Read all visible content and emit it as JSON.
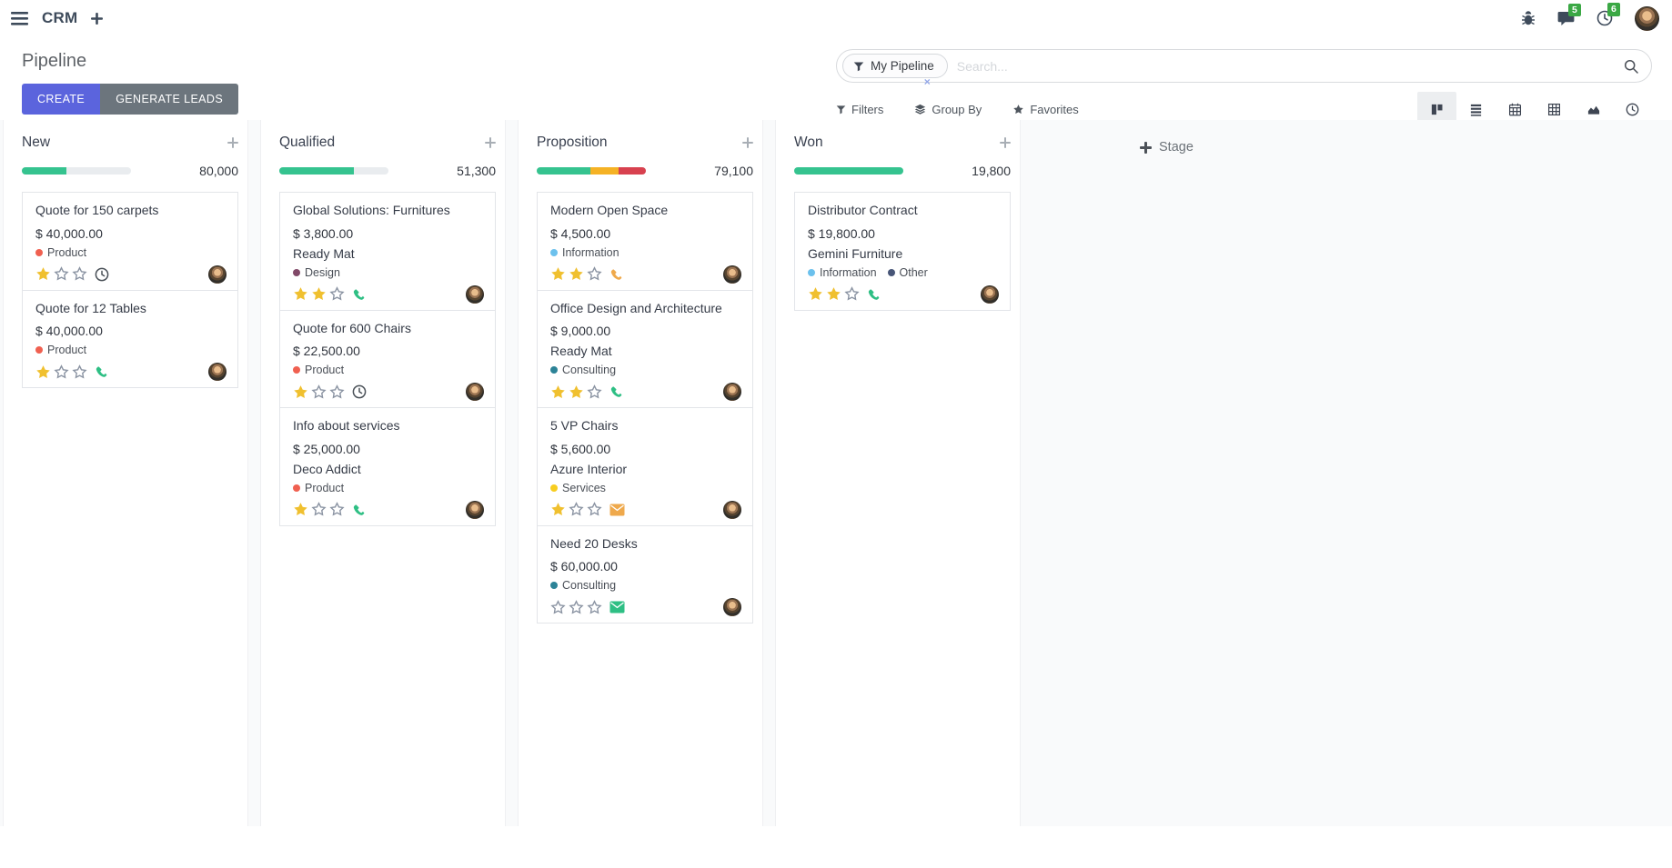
{
  "app": {
    "name": "CRM"
  },
  "navbar": {
    "messages_badge": "5",
    "activities_badge": "6"
  },
  "page": {
    "title": "Pipeline",
    "create_label": "CREATE",
    "generate_leads_label": "GENERATE LEADS"
  },
  "search": {
    "facet_label": "My Pipeline",
    "placeholder": "Search...",
    "remove_symbol": "×"
  },
  "toolbar": {
    "filters_label": "Filters",
    "group_by_label": "Group By",
    "favorites_label": "Favorites"
  },
  "view_switcher": [
    {
      "name": "kanban",
      "active": true
    },
    {
      "name": "list",
      "active": false
    },
    {
      "name": "calendar",
      "active": false
    },
    {
      "name": "pivot",
      "active": false
    },
    {
      "name": "graph",
      "active": false
    },
    {
      "name": "activity",
      "active": false
    }
  ],
  "colors": {
    "accent": "#5B64DD",
    "secondary_button": "#6C757D",
    "badge_green": "#3BA845",
    "progress_green": "#35C38F",
    "progress_yellow": "#F5B225",
    "progress_red": "#D8414F",
    "star_gold": "#F0C02F"
  },
  "board": {
    "add_column_label": "Stage",
    "columns": [
      {
        "name": "New",
        "value": "80,000",
        "progress": [
          {
            "color": "#35C38F",
            "pct": 41
          }
        ],
        "cards": [
          {
            "title": "Quote for 150 carpets",
            "amount": "$ 40,000.00",
            "tags": [
              {
                "label": "Product",
                "color": "#F06050"
              }
            ],
            "stars": 1,
            "activity": {
              "icon": "clock",
              "color": "#495057"
            }
          },
          {
            "title": "Quote for 12 Tables",
            "amount": "$ 40,000.00",
            "tags": [
              {
                "label": "Product",
                "color": "#F06050"
              }
            ],
            "stars": 1,
            "activity": {
              "icon": "phone",
              "color": "#2EBF84"
            }
          }
        ]
      },
      {
        "name": "Qualified",
        "value": "51,300",
        "progress": [
          {
            "color": "#35C38F",
            "pct": 68
          }
        ],
        "cards": [
          {
            "title": "Global Solutions: Furnitures",
            "amount": "$ 3,800.00",
            "partner": "Ready Mat",
            "tags": [
              {
                "label": "Design",
                "color": "#814968"
              }
            ],
            "stars": 2,
            "activity": {
              "icon": "phone",
              "color": "#2EBF84"
            }
          },
          {
            "title": "Quote for 600 Chairs",
            "amount": "$ 22,500.00",
            "tags": [
              {
                "label": "Product",
                "color": "#F06050"
              }
            ],
            "stars": 1,
            "activity": {
              "icon": "clock",
              "color": "#495057"
            }
          },
          {
            "title": "Info about services",
            "amount": "$ 25,000.00",
            "partner": "Deco Addict",
            "tags": [
              {
                "label": "Product",
                "color": "#F06050"
              }
            ],
            "stars": 1,
            "activity": {
              "icon": "phone",
              "color": "#2EBF84"
            }
          }
        ]
      },
      {
        "name": "Proposition",
        "value": "79,100",
        "progress": [
          {
            "color": "#35C38F",
            "pct": 49
          },
          {
            "color": "#F5B225",
            "pct": 26
          },
          {
            "color": "#D8414F",
            "pct": 25
          }
        ],
        "cards": [
          {
            "title": "Modern Open Space",
            "amount": "$ 4,500.00",
            "tags": [
              {
                "label": "Information",
                "color": "#6CC1ED"
              }
            ],
            "stars": 2,
            "activity": {
              "icon": "phone",
              "color": "#EFA94C"
            }
          },
          {
            "title": "Office Design and Architecture",
            "amount": "$ 9,000.00",
            "partner": "Ready Mat",
            "tags": [
              {
                "label": "Consulting",
                "color": "#2C8397"
              }
            ],
            "stars": 2,
            "activity": {
              "icon": "phone",
              "color": "#2EBF84"
            }
          },
          {
            "title": "5 VP Chairs",
            "amount": "$ 5,600.00",
            "partner": "Azure Interior",
            "tags": [
              {
                "label": "Services",
                "color": "#F7CD1F"
              }
            ],
            "stars": 1,
            "activity": {
              "icon": "envelope",
              "color": "#EFA94C"
            }
          },
          {
            "title": "Need 20 Desks",
            "amount": "$ 60,000.00",
            "tags": [
              {
                "label": "Consulting",
                "color": "#2C8397"
              }
            ],
            "stars": 0,
            "activity": {
              "icon": "envelope",
              "color": "#2EBF84"
            }
          }
        ]
      },
      {
        "name": "Won",
        "value": "19,800",
        "progress": [
          {
            "color": "#35C38F",
            "pct": 100
          }
        ],
        "cards": [
          {
            "title": "Distributor Contract",
            "amount": "$ 19,800.00",
            "partner": "Gemini Furniture",
            "tags": [
              {
                "label": "Information",
                "color": "#6CC1ED"
              },
              {
                "label": "Other",
                "color": "#475577"
              }
            ],
            "stars": 2,
            "activity": {
              "icon": "phone",
              "color": "#2EBF84"
            }
          }
        ]
      }
    ]
  }
}
